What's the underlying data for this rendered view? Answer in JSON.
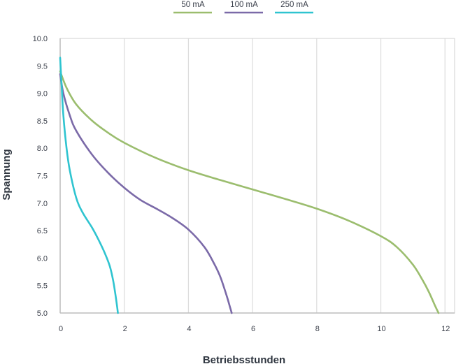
{
  "chart_data": {
    "type": "line",
    "xlabel": "Betriebsstunden",
    "ylabel": "Spannung",
    "xlim": [
      0,
      12.3
    ],
    "ylim": [
      5.0,
      10.0
    ],
    "x_ticks": [
      "0",
      "2",
      "4",
      "6",
      "8",
      "10",
      "12"
    ],
    "y_ticks": [
      "5.0",
      "5.5",
      "6.0",
      "6.5",
      "7.0",
      "7.5",
      "8.0",
      "8.5",
      "9.0",
      "9.5",
      "10.0"
    ],
    "grid": true,
    "legend_position": "top-center",
    "series": [
      {
        "name": "50 mA",
        "color": "#9bbd6e",
        "x": [
          0,
          0.2,
          0.5,
          1,
          1.5,
          2,
          3,
          4,
          5,
          6,
          7,
          8,
          9,
          10,
          10.5,
          11,
          11.3,
          11.5,
          11.7,
          11.8
        ],
        "y": [
          9.4,
          9.1,
          8.8,
          8.5,
          8.28,
          8.1,
          7.82,
          7.6,
          7.42,
          7.25,
          7.08,
          6.9,
          6.68,
          6.4,
          6.2,
          5.88,
          5.6,
          5.38,
          5.12,
          5.0
        ]
      },
      {
        "name": "100 mA",
        "color": "#7b6aa8",
        "x": [
          0,
          0.1,
          0.3,
          0.5,
          1,
          1.5,
          2,
          2.5,
          3,
          3.5,
          4,
          4.5,
          4.8,
          5.0,
          5.2,
          5.3,
          5.35
        ],
        "y": [
          9.35,
          9.0,
          8.6,
          8.32,
          7.88,
          7.55,
          7.28,
          7.06,
          6.9,
          6.73,
          6.52,
          6.2,
          5.9,
          5.65,
          5.3,
          5.1,
          5.0
        ]
      },
      {
        "name": "250 mA",
        "color": "#2fc4d0",
        "x": [
          0,
          0.05,
          0.1,
          0.2,
          0.3,
          0.5,
          0.7,
          1,
          1.2,
          1.4,
          1.55,
          1.65,
          1.72,
          1.78,
          1.8
        ],
        "y": [
          9.65,
          9.1,
          8.6,
          8.0,
          7.6,
          7.1,
          6.83,
          6.55,
          6.33,
          6.08,
          5.85,
          5.6,
          5.35,
          5.1,
          5.0
        ]
      }
    ]
  }
}
